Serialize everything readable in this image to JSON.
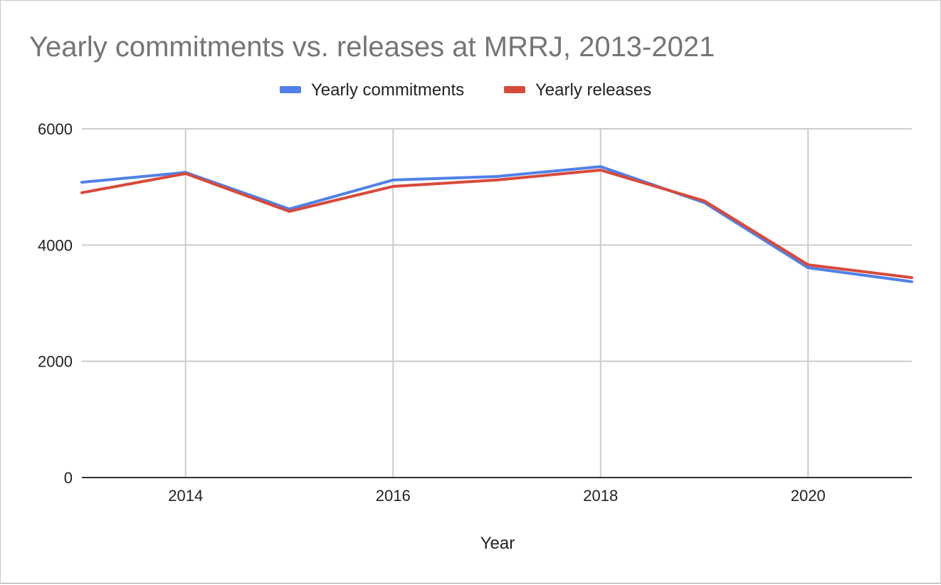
{
  "chart_data": {
    "type": "line",
    "title": "Yearly commitments vs. releases at MRRJ, 2013-2021",
    "xlabel": "Year",
    "ylabel": "",
    "x": [
      2013,
      2014,
      2015,
      2016,
      2017,
      2018,
      2019,
      2020,
      2021
    ],
    "xlim": [
      2013,
      2021
    ],
    "ylim": [
      0,
      6000
    ],
    "x_ticks": [
      2014,
      2016,
      2018,
      2020
    ],
    "y_ticks": [
      0,
      2000,
      4000,
      6000
    ],
    "grid": true,
    "legend_position": "top-center",
    "series": [
      {
        "name": "Yearly commitments",
        "color": "#4f81e8",
        "values": [
          5080,
          5250,
          4620,
          5120,
          5180,
          5350,
          4730,
          3610,
          3370
        ]
      },
      {
        "name": "Yearly releases",
        "color": "#d74a3b",
        "values": [
          4900,
          5230,
          4580,
          5010,
          5120,
          5290,
          4760,
          3660,
          3440
        ]
      }
    ]
  }
}
